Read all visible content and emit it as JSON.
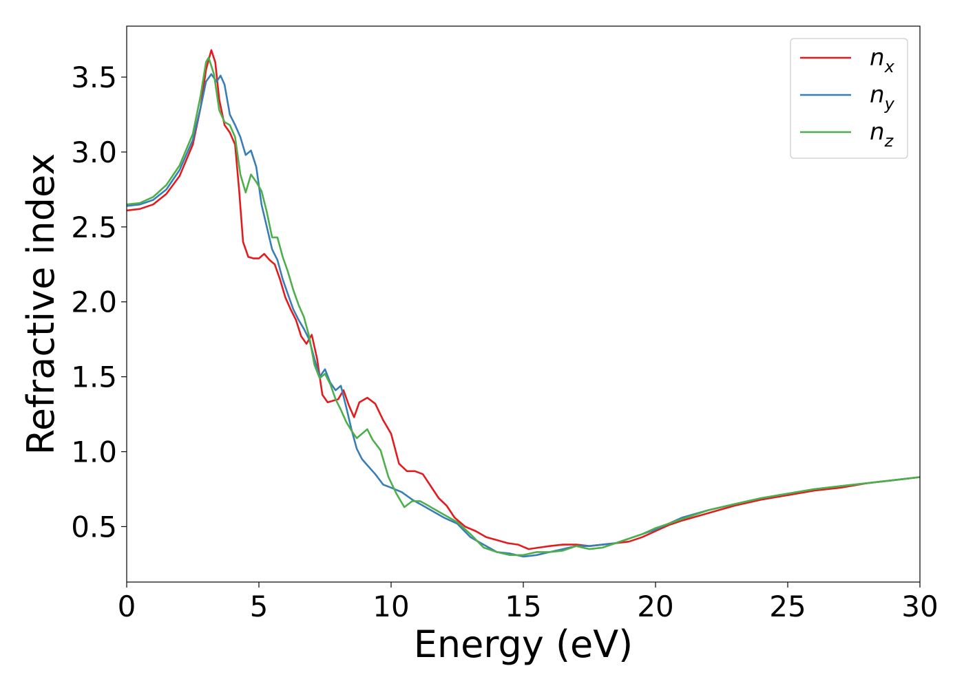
{
  "chart_data": {
    "type": "line",
    "xlabel": "Energy (eV)",
    "ylabel": "Refractive index",
    "xlim": [
      0,
      30
    ],
    "ylim": [
      0.13,
      3.84
    ],
    "x_ticks": [
      0,
      5,
      10,
      15,
      20,
      25,
      30
    ],
    "x_tick_labels": [
      "0",
      "5",
      "10",
      "15",
      "20",
      "25",
      "30"
    ],
    "y_ticks": [
      0.5,
      1.0,
      1.5,
      2.0,
      2.5,
      3.0,
      3.5
    ],
    "y_tick_labels": [
      "0.5",
      "1.0",
      "1.5",
      "2.0",
      "2.5",
      "3.0",
      "3.5"
    ],
    "grid": false,
    "legend_position": "top-right",
    "series": [
      {
        "name": "n",
        "subscript": "x",
        "color": "#e41a1c",
        "points": [
          [
            0,
            2.61
          ],
          [
            0.5,
            2.62
          ],
          [
            1,
            2.65
          ],
          [
            1.5,
            2.72
          ],
          [
            2,
            2.84
          ],
          [
            2.5,
            3.05
          ],
          [
            2.8,
            3.3
          ],
          [
            3.0,
            3.55
          ],
          [
            3.2,
            3.68
          ],
          [
            3.35,
            3.6
          ],
          [
            3.5,
            3.35
          ],
          [
            3.7,
            3.18
          ],
          [
            3.9,
            3.13
          ],
          [
            4.1,
            3.05
          ],
          [
            4.25,
            2.75
          ],
          [
            4.4,
            2.4
          ],
          [
            4.6,
            2.3
          ],
          [
            4.8,
            2.29
          ],
          [
            5.0,
            2.29
          ],
          [
            5.2,
            2.32
          ],
          [
            5.4,
            2.28
          ],
          [
            5.6,
            2.25
          ],
          [
            5.8,
            2.15
          ],
          [
            6.0,
            2.03
          ],
          [
            6.2,
            1.95
          ],
          [
            6.4,
            1.88
          ],
          [
            6.6,
            1.77
          ],
          [
            6.8,
            1.72
          ],
          [
            7.0,
            1.78
          ],
          [
            7.2,
            1.62
          ],
          [
            7.4,
            1.38
          ],
          [
            7.6,
            1.33
          ],
          [
            7.8,
            1.34
          ],
          [
            8.0,
            1.35
          ],
          [
            8.2,
            1.41
          ],
          [
            8.4,
            1.31
          ],
          [
            8.6,
            1.23
          ],
          [
            8.8,
            1.33
          ],
          [
            9.1,
            1.36
          ],
          [
            9.4,
            1.32
          ],
          [
            9.7,
            1.21
          ],
          [
            10.0,
            1.12
          ],
          [
            10.3,
            0.92
          ],
          [
            10.6,
            0.87
          ],
          [
            10.9,
            0.87
          ],
          [
            11.2,
            0.85
          ],
          [
            11.5,
            0.77
          ],
          [
            11.8,
            0.69
          ],
          [
            12.1,
            0.64
          ],
          [
            12.4,
            0.56
          ],
          [
            12.8,
            0.5
          ],
          [
            13.2,
            0.47
          ],
          [
            13.6,
            0.43
          ],
          [
            14.0,
            0.41
          ],
          [
            14.4,
            0.39
          ],
          [
            14.8,
            0.38
          ],
          [
            15.2,
            0.35
          ],
          [
            15.6,
            0.36
          ],
          [
            16.0,
            0.37
          ],
          [
            16.5,
            0.38
          ],
          [
            17.0,
            0.38
          ],
          [
            17.5,
            0.37
          ],
          [
            18.0,
            0.38
          ],
          [
            18.5,
            0.39
          ],
          [
            19.0,
            0.4
          ],
          [
            19.5,
            0.43
          ],
          [
            20.0,
            0.47
          ],
          [
            20.5,
            0.51
          ],
          [
            21.0,
            0.54
          ],
          [
            22.0,
            0.59
          ],
          [
            23.0,
            0.64
          ],
          [
            24.0,
            0.68
          ],
          [
            25.0,
            0.71
          ],
          [
            26.0,
            0.74
          ],
          [
            27.0,
            0.76
          ],
          [
            28.0,
            0.79
          ],
          [
            29.0,
            0.81
          ],
          [
            30.0,
            0.83
          ]
        ]
      },
      {
        "name": "n",
        "subscript": "y",
        "color": "#377eb8",
        "points": [
          [
            0,
            2.64
          ],
          [
            0.5,
            2.65
          ],
          [
            1,
            2.68
          ],
          [
            1.5,
            2.75
          ],
          [
            2,
            2.88
          ],
          [
            2.5,
            3.08
          ],
          [
            2.8,
            3.3
          ],
          [
            3.0,
            3.47
          ],
          [
            3.2,
            3.52
          ],
          [
            3.4,
            3.47
          ],
          [
            3.55,
            3.51
          ],
          [
            3.7,
            3.45
          ],
          [
            3.9,
            3.25
          ],
          [
            4.1,
            3.18
          ],
          [
            4.3,
            3.1
          ],
          [
            4.5,
            2.98
          ],
          [
            4.7,
            3.01
          ],
          [
            4.9,
            2.9
          ],
          [
            5.1,
            2.65
          ],
          [
            5.3,
            2.5
          ],
          [
            5.5,
            2.35
          ],
          [
            5.7,
            2.28
          ],
          [
            5.9,
            2.15
          ],
          [
            6.1,
            2.05
          ],
          [
            6.3,
            1.95
          ],
          [
            6.5,
            1.88
          ],
          [
            6.7,
            1.82
          ],
          [
            6.9,
            1.75
          ],
          [
            7.1,
            1.62
          ],
          [
            7.3,
            1.5
          ],
          [
            7.5,
            1.55
          ],
          [
            7.7,
            1.46
          ],
          [
            7.9,
            1.41
          ],
          [
            8.1,
            1.44
          ],
          [
            8.3,
            1.3
          ],
          [
            8.5,
            1.15
          ],
          [
            8.7,
            1.02
          ],
          [
            8.9,
            0.95
          ],
          [
            9.1,
            0.91
          ],
          [
            9.4,
            0.85
          ],
          [
            9.7,
            0.78
          ],
          [
            10.0,
            0.76
          ],
          [
            10.4,
            0.73
          ],
          [
            10.8,
            0.68
          ],
          [
            11.2,
            0.64
          ],
          [
            11.6,
            0.6
          ],
          [
            12.0,
            0.56
          ],
          [
            12.5,
            0.52
          ],
          [
            13.0,
            0.43
          ],
          [
            13.5,
            0.38
          ],
          [
            14.0,
            0.33
          ],
          [
            14.5,
            0.32
          ],
          [
            15.0,
            0.3
          ],
          [
            15.5,
            0.31
          ],
          [
            16.0,
            0.33
          ],
          [
            16.5,
            0.35
          ],
          [
            17.0,
            0.37
          ],
          [
            17.5,
            0.37
          ],
          [
            18.0,
            0.38
          ],
          [
            18.5,
            0.39
          ],
          [
            19.0,
            0.42
          ],
          [
            19.5,
            0.45
          ],
          [
            20.0,
            0.48
          ],
          [
            20.5,
            0.52
          ],
          [
            21.0,
            0.56
          ],
          [
            22.0,
            0.61
          ],
          [
            23.0,
            0.65
          ],
          [
            24.0,
            0.69
          ],
          [
            25.0,
            0.72
          ],
          [
            26.0,
            0.75
          ],
          [
            27.0,
            0.77
          ],
          [
            28.0,
            0.79
          ],
          [
            29.0,
            0.81
          ],
          [
            30.0,
            0.83
          ]
        ]
      },
      {
        "name": "n",
        "subscript": "z",
        "color": "#4daf4a",
        "points": [
          [
            0,
            2.65
          ],
          [
            0.5,
            2.66
          ],
          [
            1,
            2.7
          ],
          [
            1.5,
            2.78
          ],
          [
            2,
            2.91
          ],
          [
            2.5,
            3.12
          ],
          [
            2.8,
            3.38
          ],
          [
            3.0,
            3.6
          ],
          [
            3.1,
            3.63
          ],
          [
            3.3,
            3.52
          ],
          [
            3.5,
            3.28
          ],
          [
            3.7,
            3.2
          ],
          [
            3.9,
            3.18
          ],
          [
            4.1,
            3.1
          ],
          [
            4.3,
            2.85
          ],
          [
            4.5,
            2.73
          ],
          [
            4.7,
            2.85
          ],
          [
            4.9,
            2.8
          ],
          [
            5.1,
            2.74
          ],
          [
            5.3,
            2.6
          ],
          [
            5.5,
            2.43
          ],
          [
            5.7,
            2.43
          ],
          [
            5.9,
            2.3
          ],
          [
            6.1,
            2.2
          ],
          [
            6.3,
            2.08
          ],
          [
            6.5,
            1.98
          ],
          [
            6.7,
            1.9
          ],
          [
            6.9,
            1.77
          ],
          [
            7.1,
            1.58
          ],
          [
            7.3,
            1.49
          ],
          [
            7.5,
            1.52
          ],
          [
            7.7,
            1.45
          ],
          [
            7.9,
            1.35
          ],
          [
            8.1,
            1.28
          ],
          [
            8.3,
            1.2
          ],
          [
            8.5,
            1.14
          ],
          [
            8.7,
            1.09
          ],
          [
            8.9,
            1.12
          ],
          [
            9.1,
            1.15
          ],
          [
            9.3,
            1.08
          ],
          [
            9.6,
            1.01
          ],
          [
            9.9,
            0.83
          ],
          [
            10.2,
            0.72
          ],
          [
            10.5,
            0.63
          ],
          [
            10.8,
            0.67
          ],
          [
            11.1,
            0.67
          ],
          [
            11.4,
            0.64
          ],
          [
            11.7,
            0.61
          ],
          [
            12.1,
            0.57
          ],
          [
            12.5,
            0.53
          ],
          [
            13.0,
            0.45
          ],
          [
            13.5,
            0.36
          ],
          [
            14.0,
            0.33
          ],
          [
            14.5,
            0.31
          ],
          [
            15.0,
            0.31
          ],
          [
            15.5,
            0.33
          ],
          [
            16.0,
            0.33
          ],
          [
            16.5,
            0.34
          ],
          [
            17.0,
            0.37
          ],
          [
            17.5,
            0.35
          ],
          [
            18.0,
            0.36
          ],
          [
            18.5,
            0.39
          ],
          [
            19.0,
            0.42
          ],
          [
            19.5,
            0.45
          ],
          [
            20.0,
            0.49
          ],
          [
            20.5,
            0.52
          ],
          [
            21.0,
            0.55
          ],
          [
            22.0,
            0.61
          ],
          [
            23.0,
            0.65
          ],
          [
            24.0,
            0.69
          ],
          [
            25.0,
            0.72
          ],
          [
            26.0,
            0.75
          ],
          [
            27.0,
            0.77
          ],
          [
            28.0,
            0.79
          ],
          [
            29.0,
            0.81
          ],
          [
            30.0,
            0.83
          ]
        ]
      }
    ]
  }
}
